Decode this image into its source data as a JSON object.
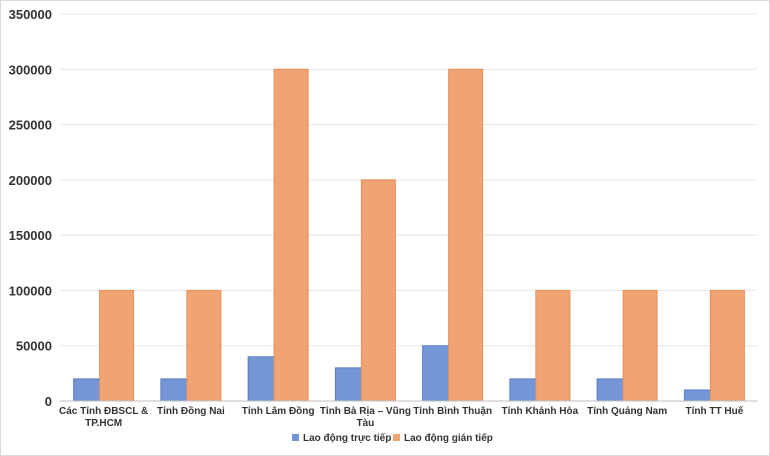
{
  "chart_data": {
    "type": "bar",
    "categories": [
      [
        "Các Tỉnh ĐBSCL &",
        "TP.HCM"
      ],
      [
        "Tỉnh Đồng Nai"
      ],
      [
        "Tỉnh Lâm Đồng"
      ],
      [
        "Tỉnh Bà Rịa – Vũng",
        "Tàu"
      ],
      [
        "Tỉnh Bình Thuận"
      ],
      [
        "Tỉnh Khánh Hòa"
      ],
      [
        "Tỉnh Quảng Nam"
      ],
      [
        "Tỉnh TT Huế"
      ]
    ],
    "series": [
      {
        "name": "Lao động trực tiếp",
        "color": "#7596d6",
        "values": [
          20000,
          20000,
          40000,
          30000,
          50000,
          20000,
          20000,
          10000
        ]
      },
      {
        "name": "Lao động gián tiếp",
        "color": "#f0a474",
        "values": [
          100000,
          100000,
          300000,
          200000,
          300000,
          100000,
          100000,
          100000
        ]
      }
    ],
    "ylim": [
      0,
      350000
    ],
    "yticks": [
      0,
      50000,
      100000,
      150000,
      200000,
      250000,
      300000,
      350000
    ],
    "grid": true,
    "legend": "bottom"
  }
}
